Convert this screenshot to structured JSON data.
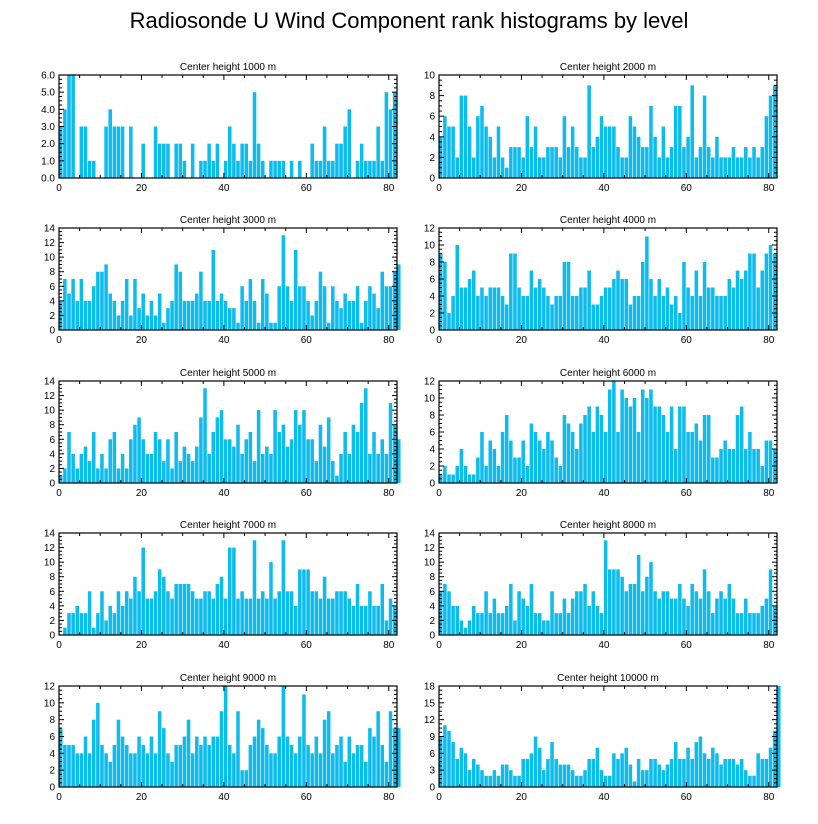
{
  "title": "Radiosonde U Wind Component rank histograms by level",
  "bar_color": "#0cbcef",
  "chart_data": [
    {
      "type": "bar",
      "title": "Center height 1000 m",
      "xlim": [
        0,
        82
      ],
      "ylim": [
        0,
        6
      ],
      "yticks": [
        "0.0",
        "1.0",
        "2.0",
        "3.0",
        "4.0",
        "5.0",
        "6.0"
      ],
      "xticks": [
        "0",
        "20",
        "40",
        "60",
        "80"
      ],
      "values": [
        3,
        4,
        6,
        6,
        0,
        3,
        3,
        1,
        1,
        0,
        0,
        3,
        4,
        3,
        3,
        3,
        0,
        3,
        0,
        0,
        2,
        0,
        0,
        3,
        2,
        2,
        2,
        0,
        2,
        2,
        1,
        0,
        2,
        0,
        1,
        1,
        2,
        1,
        2,
        0,
        1,
        3,
        2,
        1,
        2,
        2,
        1,
        5,
        2,
        1,
        0,
        1,
        1,
        1,
        1,
        0,
        1,
        0,
        1,
        0,
        0,
        2,
        1,
        1,
        3,
        1,
        1,
        2,
        2,
        3,
        4,
        0,
        1,
        2,
        1,
        1,
        1,
        3,
        1,
        5,
        4,
        5
      ]
    },
    {
      "type": "bar",
      "title": "Center height 2000 m",
      "xlim": [
        0,
        82
      ],
      "ylim": [
        0,
        10
      ],
      "yticks": [
        "0",
        "2",
        "4",
        "6",
        "8",
        "10"
      ],
      "xticks": [
        "0",
        "20",
        "40",
        "60",
        "80"
      ],
      "values": [
        4,
        6,
        5,
        5,
        2,
        8,
        8,
        5,
        2,
        6,
        7,
        5,
        4,
        2,
        5,
        2,
        1,
        3,
        3,
        3,
        2,
        6,
        3,
        5,
        2,
        2,
        3,
        3,
        3,
        2,
        6,
        3,
        5,
        3,
        2,
        2,
        9,
        3,
        4,
        6,
        5,
        5,
        5,
        3,
        2,
        2,
        6,
        5,
        4,
        3,
        3,
        7,
        4,
        2,
        5,
        2,
        3,
        7,
        7,
        3,
        4,
        9,
        2,
        3,
        8,
        3,
        2,
        4,
        2,
        2,
        2,
        3,
        2,
        2,
        3,
        2,
        3,
        2,
        3,
        6,
        8,
        9
      ]
    },
    {
      "type": "bar",
      "title": "Center height 3000 m",
      "xlim": [
        0,
        82
      ],
      "ylim": [
        0,
        14
      ],
      "yticks": [
        "0",
        "2",
        "4",
        "6",
        "8",
        "10",
        "12",
        "14"
      ],
      "xticks": [
        "0",
        "20",
        "40",
        "60",
        "80"
      ],
      "values": [
        4,
        7,
        5,
        7,
        4,
        7,
        4,
        4,
        6,
        8,
        8,
        9,
        5,
        4,
        2,
        4,
        7,
        2,
        7,
        3,
        5,
        2,
        4,
        2,
        5,
        1,
        3,
        4,
        9,
        8,
        4,
        4,
        4,
        5,
        8,
        4,
        4,
        11,
        4,
        5,
        4,
        3,
        3,
        1,
        6,
        4,
        7,
        4,
        1,
        7,
        5,
        1,
        1,
        6,
        13,
        6,
        4,
        11,
        6,
        6,
        4,
        2,
        4,
        8,
        6,
        1,
        6,
        4,
        3,
        5,
        4,
        4,
        6,
        1,
        4,
        6,
        5,
        3,
        8,
        6,
        6,
        8,
        9
      ]
    },
    {
      "type": "bar",
      "title": "Center height 4000 m",
      "xlim": [
        0,
        82
      ],
      "ylim": [
        0,
        12
      ],
      "yticks": [
        "0",
        "2",
        "4",
        "6",
        "8",
        "10",
        "12"
      ],
      "xticks": [
        "0",
        "20",
        "40",
        "60",
        "80"
      ],
      "values": [
        9,
        8,
        2,
        4,
        10,
        5,
        5,
        6,
        7,
        4,
        5,
        4,
        5,
        5,
        5,
        4,
        3,
        9,
        9,
        5,
        4,
        4,
        7,
        5,
        6,
        5,
        4,
        3,
        4,
        4,
        8,
        8,
        4,
        4,
        5,
        5,
        7,
        3,
        3,
        4,
        5,
        5,
        6,
        7,
        6,
        6,
        3,
        4,
        4,
        8,
        11,
        6,
        4,
        6,
        4,
        5,
        3,
        4,
        2,
        8,
        5,
        4,
        7,
        4,
        8,
        5,
        5,
        4,
        4,
        4,
        6,
        5,
        7,
        6,
        7,
        9,
        9,
        5,
        7,
        9,
        10,
        9
      ]
    },
    {
      "type": "bar",
      "title": "Center height 5000 m",
      "xlim": [
        0,
        82
      ],
      "ylim": [
        0,
        14
      ],
      "yticks": [
        "0",
        "2",
        "4",
        "6",
        "8",
        "10",
        "12",
        "14"
      ],
      "xticks": [
        "0",
        "20",
        "40",
        "60",
        "80"
      ],
      "values": [
        1,
        2,
        7,
        4,
        2,
        4,
        5,
        3,
        7,
        2,
        4,
        2,
        6,
        7,
        2,
        4,
        2,
        6,
        8,
        9,
        6,
        4,
        4,
        7,
        6,
        3,
        6,
        2,
        7,
        3,
        5,
        4,
        3,
        5,
        9,
        13,
        4,
        7,
        9,
        10,
        6,
        6,
        5,
        8,
        4,
        6,
        7,
        3,
        10,
        4,
        5,
        4,
        10,
        7,
        8,
        5,
        6,
        10,
        8,
        10,
        6,
        6,
        3,
        8,
        5,
        9,
        3,
        1,
        4,
        7,
        4,
        8,
        7,
        11,
        13,
        4,
        7,
        4,
        6,
        4,
        11,
        8,
        6
      ]
    },
    {
      "type": "bar",
      "title": "Center height 6000 m",
      "xlim": [
        0,
        82
      ],
      "ylim": [
        0,
        12
      ],
      "yticks": [
        "0",
        "2",
        "4",
        "6",
        "8",
        "10",
        "12"
      ],
      "xticks": [
        "0",
        "20",
        "40",
        "60",
        "80"
      ],
      "values": [
        1,
        2,
        1,
        1,
        2,
        4,
        2,
        1,
        1,
        3,
        6,
        2,
        5,
        4,
        2,
        6,
        8,
        5,
        3,
        3,
        5,
        2,
        7,
        6,
        5,
        4,
        6,
        5,
        3,
        2,
        8,
        7,
        6,
        4,
        7,
        8,
        9,
        6,
        9,
        8,
        6,
        11,
        12,
        6,
        11,
        10,
        9,
        10,
        6,
        11,
        10,
        11,
        9,
        9,
        8,
        6,
        9,
        4,
        9,
        9,
        6,
        6,
        7,
        5,
        8,
        8,
        3,
        3,
        4,
        5,
        4,
        4,
        8,
        9,
        4,
        6,
        4,
        4,
        2,
        5,
        5,
        4
      ]
    },
    {
      "type": "bar",
      "title": "Center height 7000 m",
      "xlim": [
        0,
        82
      ],
      "ylim": [
        0,
        14
      ],
      "yticks": [
        "0",
        "2",
        "4",
        "6",
        "8",
        "10",
        "12",
        "14"
      ],
      "xticks": [
        "0",
        "20",
        "40",
        "60",
        "80"
      ],
      "values": [
        0,
        1,
        3,
        3,
        4,
        3,
        3,
        6,
        1,
        3,
        6,
        2,
        4,
        3,
        6,
        4,
        6,
        5,
        8,
        6,
        12,
        5,
        5,
        6,
        9,
        8,
        6,
        5,
        7,
        7,
        7,
        7,
        6,
        5,
        5,
        6,
        6,
        5,
        7,
        8,
        5,
        12,
        12,
        5,
        6,
        5,
        5,
        13,
        5,
        6,
        5,
        10,
        5,
        6,
        13,
        6,
        6,
        4,
        9,
        9,
        9,
        6,
        6,
        5,
        8,
        5,
        5,
        6,
        6,
        6,
        5,
        4,
        7,
        4,
        4,
        6,
        4,
        4,
        7,
        2,
        5,
        4
      ]
    },
    {
      "type": "bar",
      "title": "Center height 8000 m",
      "xlim": [
        0,
        82
      ],
      "ylim": [
        0,
        14
      ],
      "yticks": [
        "0",
        "2",
        "4",
        "6",
        "8",
        "10",
        "12",
        "14"
      ],
      "xticks": [
        "0",
        "20",
        "40",
        "60",
        "80"
      ],
      "values": [
        6,
        7,
        6,
        4,
        4,
        2,
        1,
        2,
        4,
        3,
        3,
        6,
        3,
        5,
        3,
        3,
        4,
        7,
        2,
        6,
        5,
        4,
        7,
        3,
        3,
        2,
        2,
        6,
        3,
        3,
        5,
        3,
        5,
        6,
        6,
        7,
        4,
        6,
        4,
        3,
        13,
        9,
        9,
        9,
        8,
        6,
        7,
        7,
        11,
        6,
        8,
        10,
        6,
        5,
        6,
        6,
        5,
        5,
        7,
        5,
        4,
        7,
        6,
        5,
        9,
        6,
        3,
        5,
        6,
        5,
        7,
        5,
        3,
        3,
        5,
        3,
        3,
        3,
        4,
        5,
        9,
        4
      ]
    },
    {
      "type": "bar",
      "title": "Center height 9000 m",
      "xlim": [
        0,
        82
      ],
      "ylim": [
        0,
        12
      ],
      "yticks": [
        "0",
        "2",
        "4",
        "6",
        "8",
        "10",
        "12"
      ],
      "xticks": [
        "0",
        "20",
        "40",
        "60",
        "80"
      ],
      "values": [
        7,
        5,
        5,
        5,
        4,
        4,
        6,
        4,
        8,
        10,
        5,
        4,
        3,
        5,
        8,
        6,
        5,
        4,
        4,
        6,
        5,
        4,
        6,
        4,
        9,
        7,
        4,
        3,
        5,
        5,
        6,
        8,
        4,
        6,
        5,
        6,
        5,
        6,
        6,
        9,
        12,
        5,
        4,
        9,
        2,
        2,
        5,
        6,
        8,
        7,
        5,
        4,
        4,
        6,
        12,
        6,
        5,
        4,
        6,
        11,
        5,
        4,
        6,
        4,
        8,
        9,
        4,
        5,
        6,
        3,
        6,
        4,
        5,
        5,
        3,
        7,
        6,
        9,
        5,
        3,
        9,
        7,
        7
      ]
    },
    {
      "type": "bar",
      "title": "Center height 10000 m",
      "xlim": [
        0,
        82
      ],
      "ylim": [
        0,
        18
      ],
      "yticks": [
        "0",
        "3",
        "6",
        "9",
        "12",
        "15",
        "18"
      ],
      "xticks": [
        "0",
        "20",
        "40",
        "60",
        "80"
      ],
      "values": [
        9,
        11,
        10,
        8,
        5,
        7,
        6,
        3,
        5,
        4,
        3,
        2,
        2,
        3,
        2,
        4,
        4,
        3,
        2,
        2,
        5,
        5,
        6,
        9,
        7,
        3,
        5,
        8,
        5,
        4,
        4,
        4,
        3,
        2,
        2,
        3,
        5,
        5,
        7,
        3,
        2,
        2,
        6,
        5,
        6,
        7,
        4,
        1,
        5,
        3,
        3,
        5,
        5,
        4,
        3,
        4,
        5,
        8,
        5,
        5,
        7,
        5,
        8,
        9,
        6,
        5,
        7,
        6,
        4,
        5,
        5,
        5,
        4,
        5,
        3,
        2,
        2,
        6,
        5,
        5,
        7,
        10,
        18
      ]
    }
  ]
}
